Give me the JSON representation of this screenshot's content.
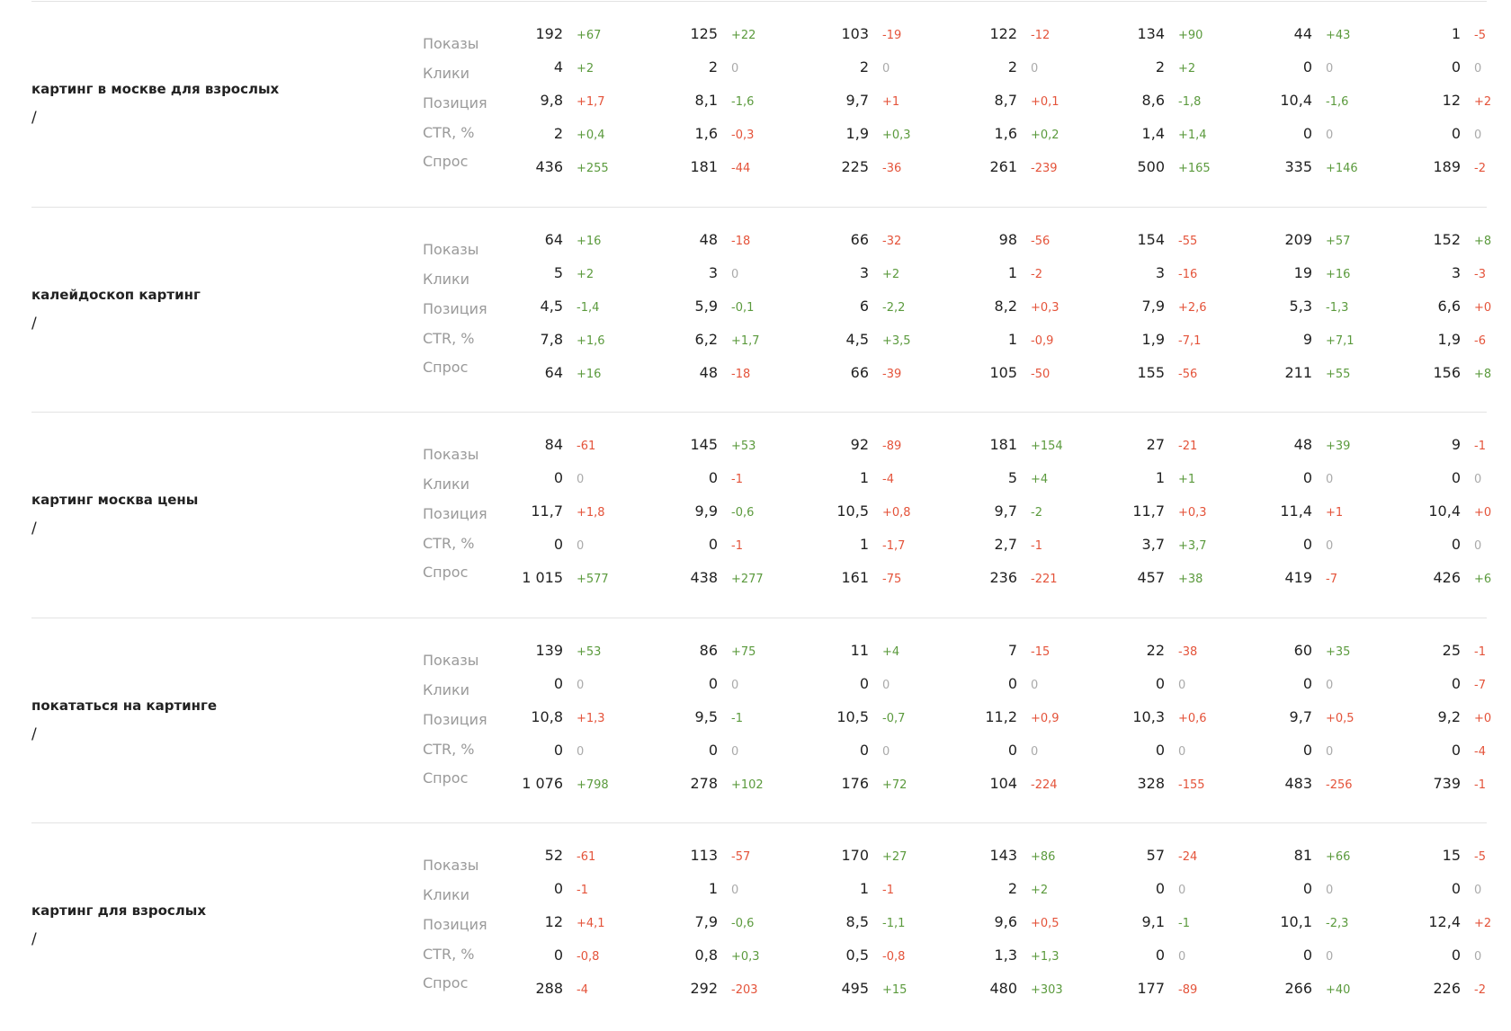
{
  "metric_labels": [
    "Показы",
    "Клики",
    "Позиция",
    "CTR, %",
    "Спрос"
  ],
  "rows": [
    {
      "query": "картинг в москве для взрослых",
      "url": "/",
      "cells": [
        [
          [
            "192",
            "+67"
          ],
          [
            "125",
            "+22"
          ],
          [
            "103",
            "-19"
          ],
          [
            "122",
            "-12"
          ],
          [
            "134",
            "+90"
          ],
          [
            "44",
            "+43"
          ],
          [
            "1",
            "-5"
          ]
        ],
        [
          [
            "4",
            "+2"
          ],
          [
            "2",
            "0"
          ],
          [
            "2",
            "0"
          ],
          [
            "2",
            "0"
          ],
          [
            "2",
            "+2"
          ],
          [
            "0",
            "0"
          ],
          [
            "0",
            "0"
          ]
        ],
        [
          [
            "9,8",
            "+1,7"
          ],
          [
            "8,1",
            "-1,6"
          ],
          [
            "9,7",
            "+1"
          ],
          [
            "8,7",
            "+0,1"
          ],
          [
            "8,6",
            "-1,8"
          ],
          [
            "10,4",
            "-1,6"
          ],
          [
            "12",
            "+2"
          ]
        ],
        [
          [
            "2",
            "+0,4"
          ],
          [
            "1,6",
            "-0,3"
          ],
          [
            "1,9",
            "+0,3"
          ],
          [
            "1,6",
            "+0,2"
          ],
          [
            "1,4",
            "+1,4"
          ],
          [
            "0",
            "0"
          ],
          [
            "0",
            "0"
          ]
        ],
        [
          [
            "436",
            "+255"
          ],
          [
            "181",
            "-44"
          ],
          [
            "225",
            "-36"
          ],
          [
            "261",
            "-239"
          ],
          [
            "500",
            "+165"
          ],
          [
            "335",
            "+146"
          ],
          [
            "189",
            "-2"
          ]
        ]
      ]
    },
    {
      "query": "калейдоскоп картинг",
      "url": "/",
      "cells": [
        [
          [
            "64",
            "+16"
          ],
          [
            "48",
            "-18"
          ],
          [
            "66",
            "-32"
          ],
          [
            "98",
            "-56"
          ],
          [
            "154",
            "-55"
          ],
          [
            "209",
            "+57"
          ],
          [
            "152",
            "+8"
          ]
        ],
        [
          [
            "5",
            "+2"
          ],
          [
            "3",
            "0"
          ],
          [
            "3",
            "+2"
          ],
          [
            "1",
            "-2"
          ],
          [
            "3",
            "-16"
          ],
          [
            "19",
            "+16"
          ],
          [
            "3",
            "-3"
          ]
        ],
        [
          [
            "4,5",
            "-1,4"
          ],
          [
            "5,9",
            "-0,1"
          ],
          [
            "6",
            "-2,2"
          ],
          [
            "8,2",
            "+0,3"
          ],
          [
            "7,9",
            "+2,6"
          ],
          [
            "5,3",
            "-1,3"
          ],
          [
            "6,6",
            "+0"
          ]
        ],
        [
          [
            "7,8",
            "+1,6"
          ],
          [
            "6,2",
            "+1,7"
          ],
          [
            "4,5",
            "+3,5"
          ],
          [
            "1",
            "-0,9"
          ],
          [
            "1,9",
            "-7,1"
          ],
          [
            "9",
            "+7,1"
          ],
          [
            "1,9",
            "-6"
          ]
        ],
        [
          [
            "64",
            "+16"
          ],
          [
            "48",
            "-18"
          ],
          [
            "66",
            "-39"
          ],
          [
            "105",
            "-50"
          ],
          [
            "155",
            "-56"
          ],
          [
            "211",
            "+55"
          ],
          [
            "156",
            "+8"
          ]
        ]
      ]
    },
    {
      "query": "картинг москва цены",
      "url": "/",
      "cells": [
        [
          [
            "84",
            "-61"
          ],
          [
            "145",
            "+53"
          ],
          [
            "92",
            "-89"
          ],
          [
            "181",
            "+154"
          ],
          [
            "27",
            "-21"
          ],
          [
            "48",
            "+39"
          ],
          [
            "9",
            "-1"
          ]
        ],
        [
          [
            "0",
            "0"
          ],
          [
            "0",
            "-1"
          ],
          [
            "1",
            "-4"
          ],
          [
            "5",
            "+4"
          ],
          [
            "1",
            "+1"
          ],
          [
            "0",
            "0"
          ],
          [
            "0",
            "0"
          ]
        ],
        [
          [
            "11,7",
            "+1,8"
          ],
          [
            "9,9",
            "-0,6"
          ],
          [
            "10,5",
            "+0,8"
          ],
          [
            "9,7",
            "-2"
          ],
          [
            "11,7",
            "+0,3"
          ],
          [
            "11,4",
            "+1"
          ],
          [
            "10,4",
            "+0"
          ]
        ],
        [
          [
            "0",
            "0"
          ],
          [
            "0",
            "-1"
          ],
          [
            "1",
            "-1,7"
          ],
          [
            "2,7",
            "-1"
          ],
          [
            "3,7",
            "+3,7"
          ],
          [
            "0",
            "0"
          ],
          [
            "0",
            "0"
          ]
        ],
        [
          [
            "1 015",
            "+577"
          ],
          [
            "438",
            "+277"
          ],
          [
            "161",
            "-75"
          ],
          [
            "236",
            "-221"
          ],
          [
            "457",
            "+38"
          ],
          [
            "419",
            "-7"
          ],
          [
            "426",
            "+6"
          ]
        ]
      ]
    },
    {
      "query": "покататься на картинге",
      "url": "/",
      "cells": [
        [
          [
            "139",
            "+53"
          ],
          [
            "86",
            "+75"
          ],
          [
            "11",
            "+4"
          ],
          [
            "7",
            "-15"
          ],
          [
            "22",
            "-38"
          ],
          [
            "60",
            "+35"
          ],
          [
            "25",
            "-1"
          ]
        ],
        [
          [
            "0",
            "0"
          ],
          [
            "0",
            "0"
          ],
          [
            "0",
            "0"
          ],
          [
            "0",
            "0"
          ],
          [
            "0",
            "0"
          ],
          [
            "0",
            "0"
          ],
          [
            "0",
            "-7"
          ]
        ],
        [
          [
            "10,8",
            "+1,3"
          ],
          [
            "9,5",
            "-1"
          ],
          [
            "10,5",
            "-0,7"
          ],
          [
            "11,2",
            "+0,9"
          ],
          [
            "10,3",
            "+0,6"
          ],
          [
            "9,7",
            "+0,5"
          ],
          [
            "9,2",
            "+0"
          ]
        ],
        [
          [
            "0",
            "0"
          ],
          [
            "0",
            "0"
          ],
          [
            "0",
            "0"
          ],
          [
            "0",
            "0"
          ],
          [
            "0",
            "0"
          ],
          [
            "0",
            "0"
          ],
          [
            "0",
            "-4"
          ]
        ],
        [
          [
            "1 076",
            "+798"
          ],
          [
            "278",
            "+102"
          ],
          [
            "176",
            "+72"
          ],
          [
            "104",
            "-224"
          ],
          [
            "328",
            "-155"
          ],
          [
            "483",
            "-256"
          ],
          [
            "739",
            "-1"
          ]
        ]
      ]
    },
    {
      "query": "картинг для взрослых",
      "url": "/",
      "cells": [
        [
          [
            "52",
            "-61"
          ],
          [
            "113",
            "-57"
          ],
          [
            "170",
            "+27"
          ],
          [
            "143",
            "+86"
          ],
          [
            "57",
            "-24"
          ],
          [
            "81",
            "+66"
          ],
          [
            "15",
            "-5"
          ]
        ],
        [
          [
            "0",
            "-1"
          ],
          [
            "1",
            "0"
          ],
          [
            "1",
            "-1"
          ],
          [
            "2",
            "+2"
          ],
          [
            "0",
            "0"
          ],
          [
            "0",
            "0"
          ],
          [
            "0",
            "0"
          ]
        ],
        [
          [
            "12",
            "+4,1"
          ],
          [
            "7,9",
            "-0,6"
          ],
          [
            "8,5",
            "-1,1"
          ],
          [
            "9,6",
            "+0,5"
          ],
          [
            "9,1",
            "-1"
          ],
          [
            "10,1",
            "-2,3"
          ],
          [
            "12,4",
            "+2"
          ]
        ],
        [
          [
            "0",
            "-0,8"
          ],
          [
            "0,8",
            "+0,3"
          ],
          [
            "0,5",
            "-0,8"
          ],
          [
            "1,3",
            "+1,3"
          ],
          [
            "0",
            "0"
          ],
          [
            "0",
            "0"
          ],
          [
            "0",
            "0"
          ]
        ],
        [
          [
            "288",
            "-4"
          ],
          [
            "292",
            "-203"
          ],
          [
            "495",
            "+15"
          ],
          [
            "480",
            "+303"
          ],
          [
            "177",
            "-89"
          ],
          [
            "266",
            "+40"
          ],
          [
            "226",
            "-2"
          ]
        ]
      ]
    }
  ]
}
